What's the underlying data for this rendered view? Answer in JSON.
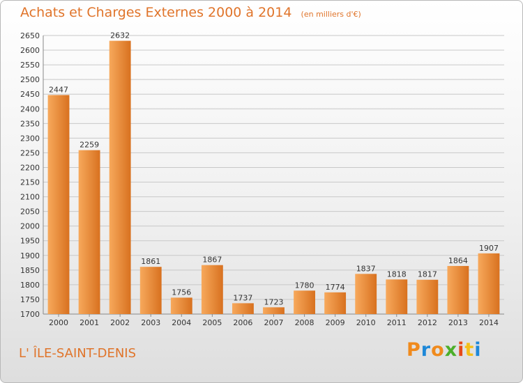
{
  "title": "Achats et Charges Externes 2000 à 2014",
  "subtitle": "(en milliers d'€)",
  "location": "L' ÎLE-SAINT-DENIS",
  "logo": {
    "letters": [
      "P",
      "r",
      "o",
      "x",
      "i",
      "t",
      "i"
    ],
    "colors": [
      "#f08a1c",
      "#1e88d8",
      "#f08a1c",
      "#4caf2a",
      "#e64a19",
      "#f5c01a",
      "#1e88d8"
    ]
  },
  "colors": {
    "bar_light": "#f7a95c",
    "bar_dark": "#d8711f",
    "title": "#e0742a",
    "grid": "#c8c8c8"
  },
  "chart_data": {
    "type": "bar",
    "categories": [
      "2000",
      "2001",
      "2002",
      "2003",
      "2004",
      "2005",
      "2006",
      "2007",
      "2008",
      "2009",
      "2010",
      "2011",
      "2012",
      "2013",
      "2014"
    ],
    "values": [
      2447,
      2259,
      2632,
      1861,
      1756,
      1867,
      1737,
      1723,
      1780,
      1774,
      1837,
      1818,
      1817,
      1864,
      1907
    ],
    "ylim": [
      1700,
      2650
    ],
    "ytick_step": 50,
    "grid": true,
    "data_labels": true
  }
}
